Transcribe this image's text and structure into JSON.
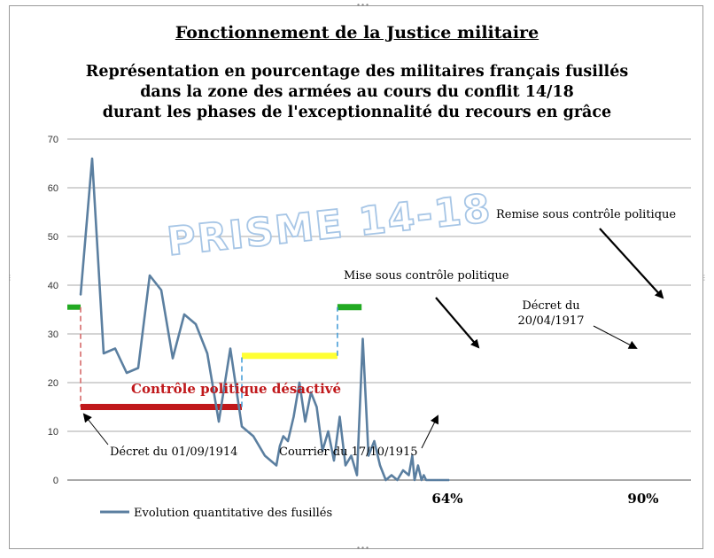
{
  "page": {
    "title": "Fonctionnement de la Justice militaire",
    "subtitle_lines": [
      "Représentation en pourcentage des militaires français fusillés",
      "dans la zone des armées au cours du conflit 14/18",
      "durant les phases de l'exceptionnalité du recours en grâce"
    ],
    "watermark": "PRISME 14-18"
  },
  "chart_data": {
    "type": "line",
    "ylim": [
      0,
      70
    ],
    "yticks": [
      0,
      10,
      20,
      30,
      40,
      50,
      60,
      70
    ],
    "grid": true,
    "legend_position": "bottom-left",
    "series": [
      {
        "name": "Evolution quantitative des fusillés",
        "color": "#5b7fa0",
        "x": [
          0,
          1,
          2,
          3,
          4,
          5,
          6,
          7,
          8,
          9,
          10,
          11,
          12,
          13,
          14,
          15,
          16,
          17,
          17.3,
          17.6,
          18,
          18.5,
          19,
          19.5,
          20,
          20.5,
          21,
          21.5,
          22,
          22.5,
          23,
          23.5,
          24,
          24.5,
          25,
          25.5,
          26,
          26.5,
          27,
          27.5,
          28,
          28.5,
          28.8,
          29,
          29.1,
          29.3,
          29.6,
          29.8,
          30,
          30.2,
          30.4,
          30.6,
          30.8,
          31,
          31.2,
          31.4,
          31.6,
          31.8,
          32
        ],
        "values": [
          38,
          66,
          26,
          27,
          22,
          23,
          42,
          39,
          25,
          34,
          32,
          26,
          12,
          27,
          11,
          9,
          5,
          3,
          7,
          9,
          8,
          13,
          20,
          12,
          18,
          15,
          6,
          10,
          4,
          13,
          3,
          5,
          1,
          29,
          5,
          8,
          3,
          0,
          1,
          0,
          2,
          1,
          5,
          0,
          1,
          3,
          0,
          1,
          0,
          0,
          0,
          0,
          0,
          0,
          0,
          0,
          0,
          0,
          0
        ]
      }
    ],
    "phases": [
      {
        "label": "Contrôle politique désactivé",
        "from": 0.0,
        "to": 14.0,
        "level": 15,
        "color": "#c0181b"
      },
      {
        "label": "Mise sous contrôle politique",
        "from": 14.0,
        "to": 22.3,
        "level": 25.5,
        "color": "#ffff33"
      },
      {
        "label": "Remise sous contrôle politique",
        "from": 22.3,
        "to": 24.4,
        "level": 35.5,
        "color": "#22aa22"
      }
    ],
    "pre_segment": {
      "level": 35.5,
      "color": "#22aa22"
    },
    "annotations": [
      {
        "text": "Contrôle politique désactivé",
        "color": "#c0181b"
      },
      {
        "text": "Mise sous contrôle politique",
        "color": "#000000"
      },
      {
        "text": "Remise sous contrôle politique",
        "color": "#000000"
      },
      {
        "text": "Décret du 01/09/1914",
        "color": "#000000"
      },
      {
        "text": "Courrier du 17/10/1915",
        "color": "#000000"
      },
      {
        "text": "Décret du",
        "color": "#000000"
      },
      {
        "text": "20/04/1917",
        "color": "#000000"
      }
    ],
    "axis_markers": [
      "64%",
      "90%"
    ]
  }
}
